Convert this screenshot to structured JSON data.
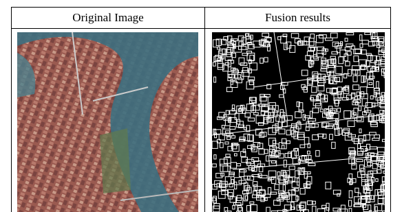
{
  "table": {
    "header": [
      "Original Image",
      "Fusion results"
    ]
  }
}
